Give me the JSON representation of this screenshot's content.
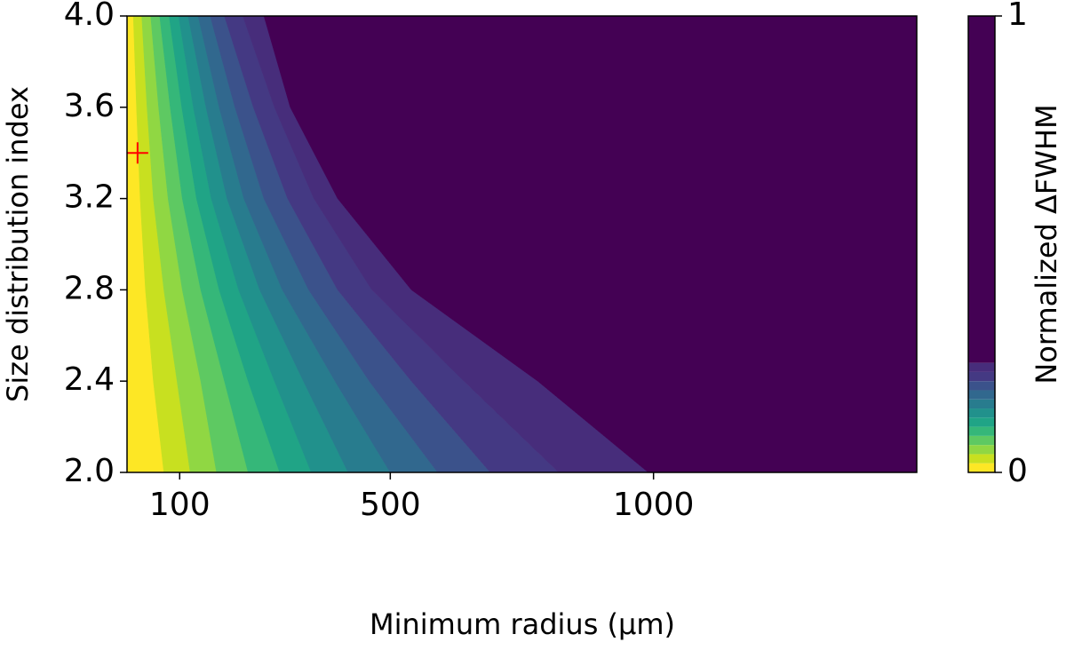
{
  "chart_data": {
    "type": "contour",
    "xlabel": "Minimum radius (μm)",
    "ylabel": "Size distribution index",
    "colorbar_label": "Normalized ΔFWHM",
    "xlim": [
      0,
      1500
    ],
    "xticks": [
      100,
      500,
      1000
    ],
    "ylim": [
      2.0,
      4.0
    ],
    "yticks": [
      {
        "value": 2.0,
        "label": "2.0"
      },
      {
        "value": 2.4,
        "label": "2.4"
      },
      {
        "value": 2.8,
        "label": "2.8"
      },
      {
        "value": 3.2,
        "label": "3.2"
      },
      {
        "value": 3.6,
        "label": "3.6"
      },
      {
        "value": 4.0,
        "label": "4.0"
      }
    ],
    "clim": [
      0,
      1
    ],
    "cticks": [
      0,
      1
    ],
    "levels": [
      0,
      0.02,
      0.04,
      0.06,
      0.08,
      0.1,
      0.12,
      0.14,
      0.16,
      0.18,
      0.2,
      0.22,
      0.24,
      1
    ],
    "colors": [
      "#fde725",
      "#c8e020",
      "#90d743",
      "#5ec962",
      "#35b779",
      "#20a486",
      "#21918c",
      "#287c8e",
      "#31688e",
      "#3b528b",
      "#443983",
      "#472d7b",
      "#440154"
    ],
    "y_samples": [
      2.0,
      2.4,
      2.8,
      3.2,
      3.6,
      4.0
    ],
    "boundaries": [
      [
        70,
        50,
        35,
        25,
        18,
        12
      ],
      [
        120,
        95,
        70,
        50,
        38,
        28
      ],
      [
        170,
        140,
        105,
        78,
        60,
        45
      ],
      [
        230,
        185,
        140,
        105,
        82,
        62
      ],
      [
        290,
        230,
        175,
        132,
        104,
        80
      ],
      [
        350,
        280,
        212,
        160,
        126,
        98
      ],
      [
        420,
        335,
        252,
        190,
        150,
        116
      ],
      [
        500,
        395,
        295,
        222,
        175,
        135
      ],
      [
        590,
        460,
        345,
        260,
        205,
        158
      ],
      [
        690,
        540,
        400,
        305,
        240,
        185
      ],
      [
        820,
        640,
        465,
        355,
        280,
        220
      ],
      [
        990,
        780,
        540,
        400,
        310,
        260
      ]
    ],
    "marker": {
      "x": 20,
      "y": 3.4,
      "color": "#ff0000"
    }
  }
}
